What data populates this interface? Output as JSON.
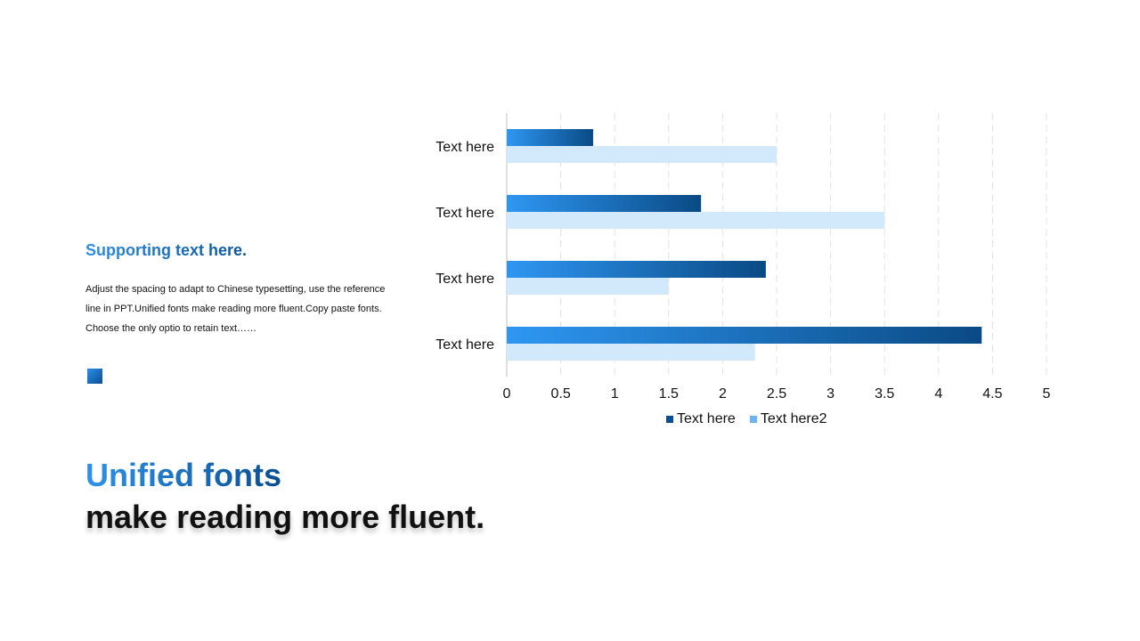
{
  "left_panel": {
    "subtitle": "Supporting text here.",
    "body": "Adjust the spacing to adapt to Chinese typesetting, use the reference line in PPT.Unified fonts make reading more fluent.Copy paste fonts. Choose the only optio to retain text……",
    "headline_line1": "Unified fonts",
    "headline_line2": "make reading more fluent."
  },
  "colors": {
    "series1_start": "#2e97f2",
    "series1_end": "#0a4a85",
    "series2": "#d2e8fb",
    "legend_series1": "#0b4f91",
    "legend_series2": "#6cb4f0",
    "gridline": "#e3e3e3",
    "axis": "#bfbfbf"
  },
  "chart_data": {
    "type": "bar",
    "orientation": "horizontal",
    "categories": [
      "Text here",
      "Text here",
      "Text here",
      "Text here"
    ],
    "series": [
      {
        "name": "Text here",
        "values": [
          0.8,
          1.8,
          2.4,
          4.4
        ]
      },
      {
        "name": "Text here2",
        "values": [
          2.5,
          3.5,
          1.5,
          2.3
        ]
      }
    ],
    "xlim": [
      0,
      5
    ],
    "xticks": [
      "0",
      "0.5",
      "1",
      "1.5",
      "2",
      "2.5",
      "3",
      "3.5",
      "4",
      "4.5",
      "5"
    ],
    "grid": true,
    "legend_position": "bottom"
  }
}
